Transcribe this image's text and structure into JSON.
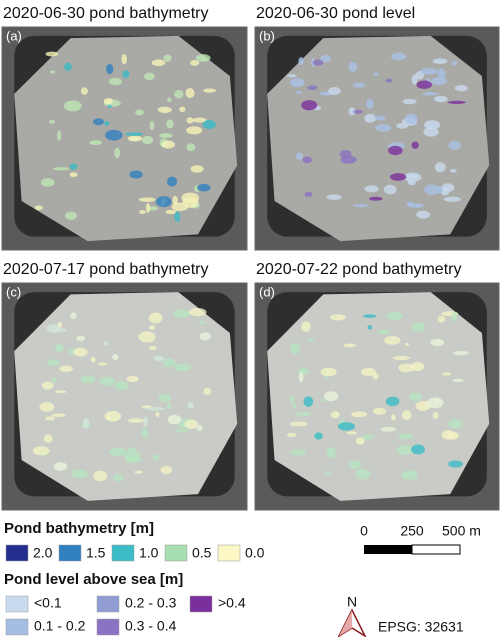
{
  "panels": [
    {
      "title": "2020-06-30 pond bathymetry",
      "label": "(a)"
    },
    {
      "title": "2020-06-30 pond level",
      "label": "(b)"
    },
    {
      "title": "2020-07-17 pond bathymetry",
      "label": "(c)"
    },
    {
      "title": "2020-07-22 pond bathymetry",
      "label": "(d)"
    }
  ],
  "legend_bathymetry": {
    "title": "Pond bathymetry [m]",
    "items": [
      {
        "label": "2.0",
        "color": "#232f8e"
      },
      {
        "label": "1.5",
        "color": "#2f7fc1"
      },
      {
        "label": "1.0",
        "color": "#3bbcc6"
      },
      {
        "label": "0.5",
        "color": "#a8dfb0"
      },
      {
        "label": "0.0",
        "color": "#fbf8c6"
      }
    ]
  },
  "legend_level": {
    "title": "Pond level above sea [m]",
    "items": [
      {
        "label": "<0.1",
        "color": "#c9dcef"
      },
      {
        "label": "0.1 - 0.2",
        "color": "#a5bde0"
      },
      {
        "label": "0.2 - 0.3",
        "color": "#929ed3"
      },
      {
        "label": "0.3 - 0.4",
        "color": "#8a73c2"
      },
      {
        "label": ">0.4",
        "color": "#7b2f9a"
      }
    ]
  },
  "scale_bar": {
    "labels": [
      "0",
      "250",
      "500 m"
    ]
  },
  "north_arrow": {
    "label": "N"
  },
  "crs": "EPSG: 32631"
}
